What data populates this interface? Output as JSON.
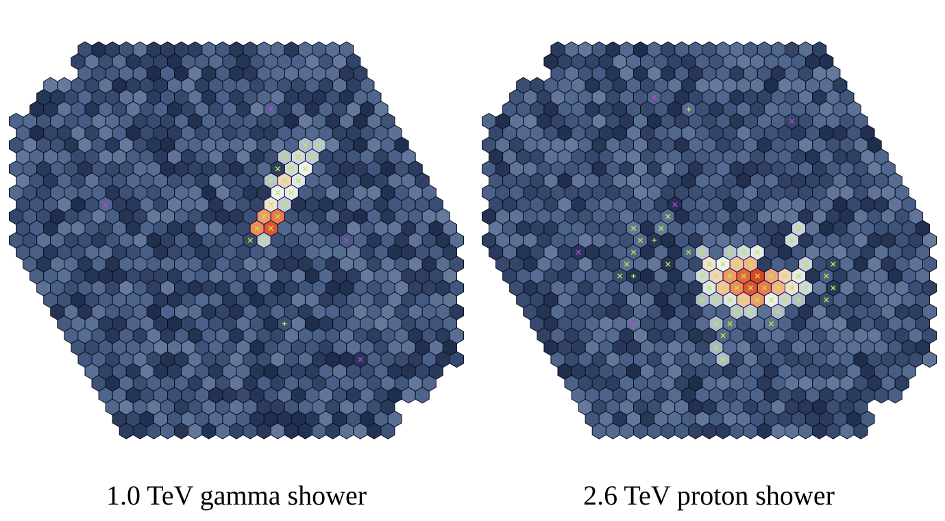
{
  "panels": [
    {
      "caption": "1.0 TeV gamma shower",
      "seed": 11,
      "hot": [
        {
          "q": 8,
          "r": -7,
          "v": 0.6
        },
        {
          "q": 9,
          "r": -7,
          "v": 0.5
        },
        {
          "q": 8,
          "r": -6,
          "v": 0.8
        },
        {
          "q": 7,
          "r": -6,
          "v": 0.6
        },
        {
          "q": 9,
          "r": -8,
          "v": 0.4
        },
        {
          "q": 6,
          "r": -5,
          "v": 0.9
        },
        {
          "q": 7,
          "r": -5,
          "v": 0.7
        },
        {
          "q": 5,
          "r": -4,
          "v": 0.8
        },
        {
          "q": 6,
          "r": -4,
          "v": 0.75
        },
        {
          "q": 4,
          "r": -3,
          "v": 0.85
        },
        {
          "q": 5,
          "r": -3,
          "v": 0.5
        },
        {
          "q": 4,
          "r": -2,
          "v": 1.2
        },
        {
          "q": 3,
          "r": -2,
          "v": 1.1
        },
        {
          "q": 3,
          "r": -1,
          "v": 1.3
        },
        {
          "q": 2,
          "r": -1,
          "v": 1.15
        },
        {
          "q": 2,
          "r": 0,
          "v": 0.5
        },
        {
          "q": 10,
          "r": -8,
          "v": 0.45
        },
        {
          "q": 7,
          "r": -7,
          "v": 0.45
        },
        {
          "q": 5,
          "r": -5,
          "v": 0.45
        }
      ],
      "green_marks": [
        {
          "q": 9,
          "r": -7
        },
        {
          "q": 8,
          "r": -7
        },
        {
          "q": 8,
          "r": -6
        },
        {
          "q": 7,
          "r": -6
        },
        {
          "q": 9,
          "r": -8
        },
        {
          "q": 6,
          "r": -5
        },
        {
          "q": 7,
          "r": -5
        },
        {
          "q": 5,
          "r": -4
        },
        {
          "q": 6,
          "r": -4
        },
        {
          "q": 4,
          "r": -3
        },
        {
          "q": 5,
          "r": -3
        },
        {
          "q": 4,
          "r": -2
        },
        {
          "q": 3,
          "r": -2
        },
        {
          "q": 3,
          "r": -1
        },
        {
          "q": 2,
          "r": -1
        },
        {
          "q": 2,
          "r": 0
        },
        {
          "q": 10,
          "r": -8
        },
        {
          "q": 7,
          "r": -7
        },
        {
          "q": 5,
          "r": -5
        },
        {
          "q": 1,
          "r": 0
        },
        {
          "q": 6,
          "r": -6
        }
      ],
      "magenta_marks": [
        {
          "q": -8,
          "r": -3
        },
        {
          "q": 8,
          "r": -11
        },
        {
          "q": 8,
          "r": 0
        },
        {
          "q": 4,
          "r": 10
        }
      ],
      "plus_marks": [
        {
          "q": 0,
          "r": 7
        }
      ]
    },
    {
      "caption": "2.6 TeV proton shower",
      "seed": 29,
      "hot": [
        {
          "q": 1,
          "r": 4,
          "v": 1.3
        },
        {
          "q": 2,
          "r": 3,
          "v": 1.35
        },
        {
          "q": 2,
          "r": 4,
          "v": 1.2
        },
        {
          "q": 1,
          "r": 3,
          "v": 1.25
        },
        {
          "q": 0,
          "r": 4,
          "v": 1.15
        },
        {
          "q": 0,
          "r": 3,
          "v": 1.1
        },
        {
          "q": 3,
          "r": 3,
          "v": 1.05
        },
        {
          "q": 1,
          "r": 5,
          "v": 1.1
        },
        {
          "q": 2,
          "r": 2,
          "v": 1.0
        },
        {
          "q": -1,
          "r": 4,
          "v": 0.95
        },
        {
          "q": 3,
          "r": 4,
          "v": 1.0
        },
        {
          "q": 0,
          "r": 5,
          "v": 0.95
        },
        {
          "q": -1,
          "r": 3,
          "v": 0.9
        },
        {
          "q": 1,
          "r": 2,
          "v": 0.95
        },
        {
          "q": 4,
          "r": 3,
          "v": 0.9
        },
        {
          "q": -1,
          "r": 2,
          "v": 0.85
        },
        {
          "q": 0,
          "r": 2,
          "v": 0.8
        },
        {
          "q": 2,
          "r": 5,
          "v": 0.8
        },
        {
          "q": 4,
          "r": 4,
          "v": 0.85
        },
        {
          "q": 5,
          "r": 3,
          "v": 0.75
        },
        {
          "q": -2,
          "r": 4,
          "v": 0.7
        },
        {
          "q": -1,
          "r": 5,
          "v": 0.7
        },
        {
          "q": 3,
          "r": 1,
          "v": 0.75
        },
        {
          "q": -2,
          "r": 3,
          "v": 0.6
        },
        {
          "q": 2,
          "r": 1,
          "v": 0.6
        },
        {
          "q": 6,
          "r": 2,
          "v": 0.55
        },
        {
          "q": 5,
          "r": 4,
          "v": 0.6
        },
        {
          "q": 3,
          "r": 5,
          "v": 0.55
        },
        {
          "q": 0,
          "r": 6,
          "v": 0.5
        },
        {
          "q": -2,
          "r": 5,
          "v": 0.5
        },
        {
          "q": 7,
          "r": -1,
          "v": 0.55
        },
        {
          "q": 6,
          "r": 0,
          "v": 0.6
        },
        {
          "q": -1,
          "r": 1,
          "v": 0.45
        },
        {
          "q": 1,
          "r": 1,
          "v": 0.45
        },
        {
          "q": -3,
          "r": 5,
          "v": 0.4
        },
        {
          "q": -1,
          "r": 6,
          "v": 0.45
        },
        {
          "q": 2,
          "r": 6,
          "v": 0.4
        },
        {
          "q": 4,
          "r": 5,
          "v": 0.4
        },
        {
          "q": -3,
          "r": 7,
          "v": 0.4
        },
        {
          "q": -4,
          "r": 9,
          "v": 0.35
        },
        {
          "q": -4,
          "r": 10,
          "v": 0.4
        }
      ],
      "green_marks": [
        {
          "q": 1,
          "r": 4
        },
        {
          "q": 2,
          "r": 3
        },
        {
          "q": 2,
          "r": 4
        },
        {
          "q": 1,
          "r": 3
        },
        {
          "q": 0,
          "r": 4
        },
        {
          "q": 0,
          "r": 3
        },
        {
          "q": 3,
          "r": 3
        },
        {
          "q": 1,
          "r": 5
        },
        {
          "q": 2,
          "r": 2
        },
        {
          "q": -1,
          "r": 4
        },
        {
          "q": 3,
          "r": 4
        },
        {
          "q": 0,
          "r": 5
        },
        {
          "q": -1,
          "r": 3
        },
        {
          "q": 1,
          "r": 2
        },
        {
          "q": 4,
          "r": 3
        },
        {
          "q": -1,
          "r": 2
        },
        {
          "q": 0,
          "r": 2
        },
        {
          "q": 2,
          "r": 5
        },
        {
          "q": 4,
          "r": 4
        },
        {
          "q": 5,
          "r": 3
        },
        {
          "q": -2,
          "r": 4
        },
        {
          "q": -1,
          "r": 5
        },
        {
          "q": 3,
          "r": 1
        },
        {
          "q": -2,
          "r": 3
        },
        {
          "q": 2,
          "r": 1
        },
        {
          "q": 6,
          "r": 2
        },
        {
          "q": 5,
          "r": 4
        },
        {
          "q": 3,
          "r": 5
        },
        {
          "q": 0,
          "r": 6
        },
        {
          "q": -2,
          "r": 5
        },
        {
          "q": 7,
          "r": -1
        },
        {
          "q": 6,
          "r": 0
        },
        {
          "q": -1,
          "r": 1
        },
        {
          "q": 1,
          "r": 1
        },
        {
          "q": -3,
          "r": 5
        },
        {
          "q": -1,
          "r": 6
        },
        {
          "q": 2,
          "r": 6
        },
        {
          "q": 4,
          "r": 5
        },
        {
          "q": -3,
          "r": 7
        },
        {
          "q": -4,
          "r": 9
        },
        {
          "q": -4,
          "r": 10
        },
        {
          "q": -7,
          "r": 2
        },
        {
          "q": -8,
          "r": 3
        },
        {
          "q": -6,
          "r": 1
        },
        {
          "q": -5,
          "r": 0
        },
        {
          "q": -5,
          "r": -1
        },
        {
          "q": -2,
          "r": -2
        },
        {
          "q": -3,
          "r": -1
        },
        {
          "q": 7,
          "r": 3
        },
        {
          "q": 8,
          "r": 2
        },
        {
          "q": 7,
          "r": 4
        },
        {
          "q": -3,
          "r": 8
        },
        {
          "q": -2,
          "r": 7
        },
        {
          "q": 1,
          "r": 7
        },
        {
          "q": 6,
          "r": 5
        },
        {
          "q": -4,
          "r": 2
        },
        {
          "q": -2,
          "r": 1
        }
      ],
      "magenta_marks": [
        {
          "q": 2,
          "r": -12
        },
        {
          "q": -10,
          "r": 1
        },
        {
          "q": -1,
          "r": -3
        },
        {
          "q": 11,
          "r": -10
        },
        {
          "q": -9,
          "r": 7
        }
      ],
      "plus_marks": [
        {
          "q": 4,
          "r": -11
        },
        {
          "q": -4,
          "r": 0
        },
        {
          "q": -7,
          "r": 3
        }
      ]
    }
  ],
  "colors": {
    "pixel_dark": "#1f2d4d",
    "pixel_mid": "#4a6088",
    "pixel_light": "#7286a6",
    "hot_white": "#eef1f4",
    "hot_peach": "#f5c2a4",
    "hot_orange": "#ef8a5d",
    "hot_red": "#d9442a",
    "mark_green": "#b8f03a",
    "mark_magenta": "#c23fd6",
    "outline": "#0a0f1e"
  }
}
